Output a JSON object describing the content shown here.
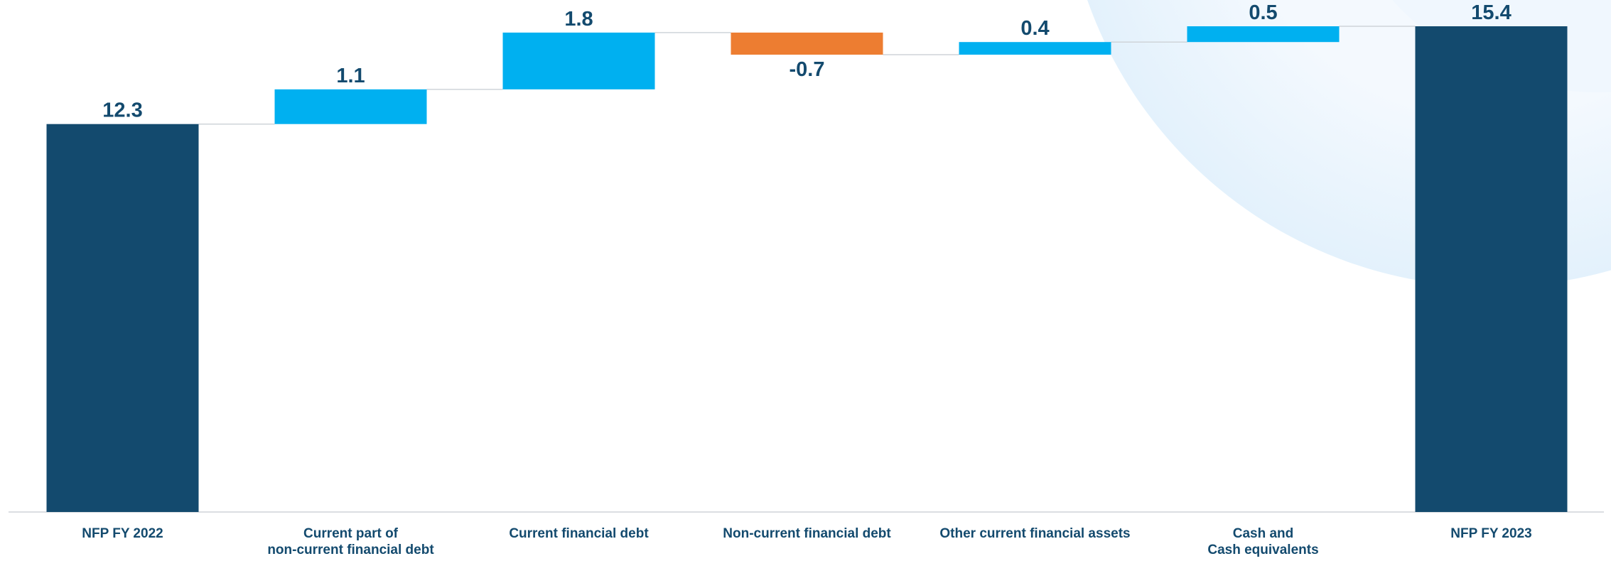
{
  "chart_data": {
    "type": "waterfall",
    "categories": [
      "NFP FY 2022",
      "Current part of\nnon-current financial debt",
      "Current financial debt",
      "Non-current financial debt",
      "Other current financial assets",
      "Cash and\nCash equivalents",
      "NFP FY 2023"
    ],
    "measures": [
      "absolute",
      "relative",
      "relative",
      "relative",
      "relative",
      "relative",
      "total"
    ],
    "values": [
      12.3,
      1.1,
      1.8,
      -0.7,
      0.4,
      0.5,
      15.4
    ],
    "total_color": "#134a6e",
    "increase_color": "#00b0f0",
    "decrease_color": "#ed7d31"
  }
}
